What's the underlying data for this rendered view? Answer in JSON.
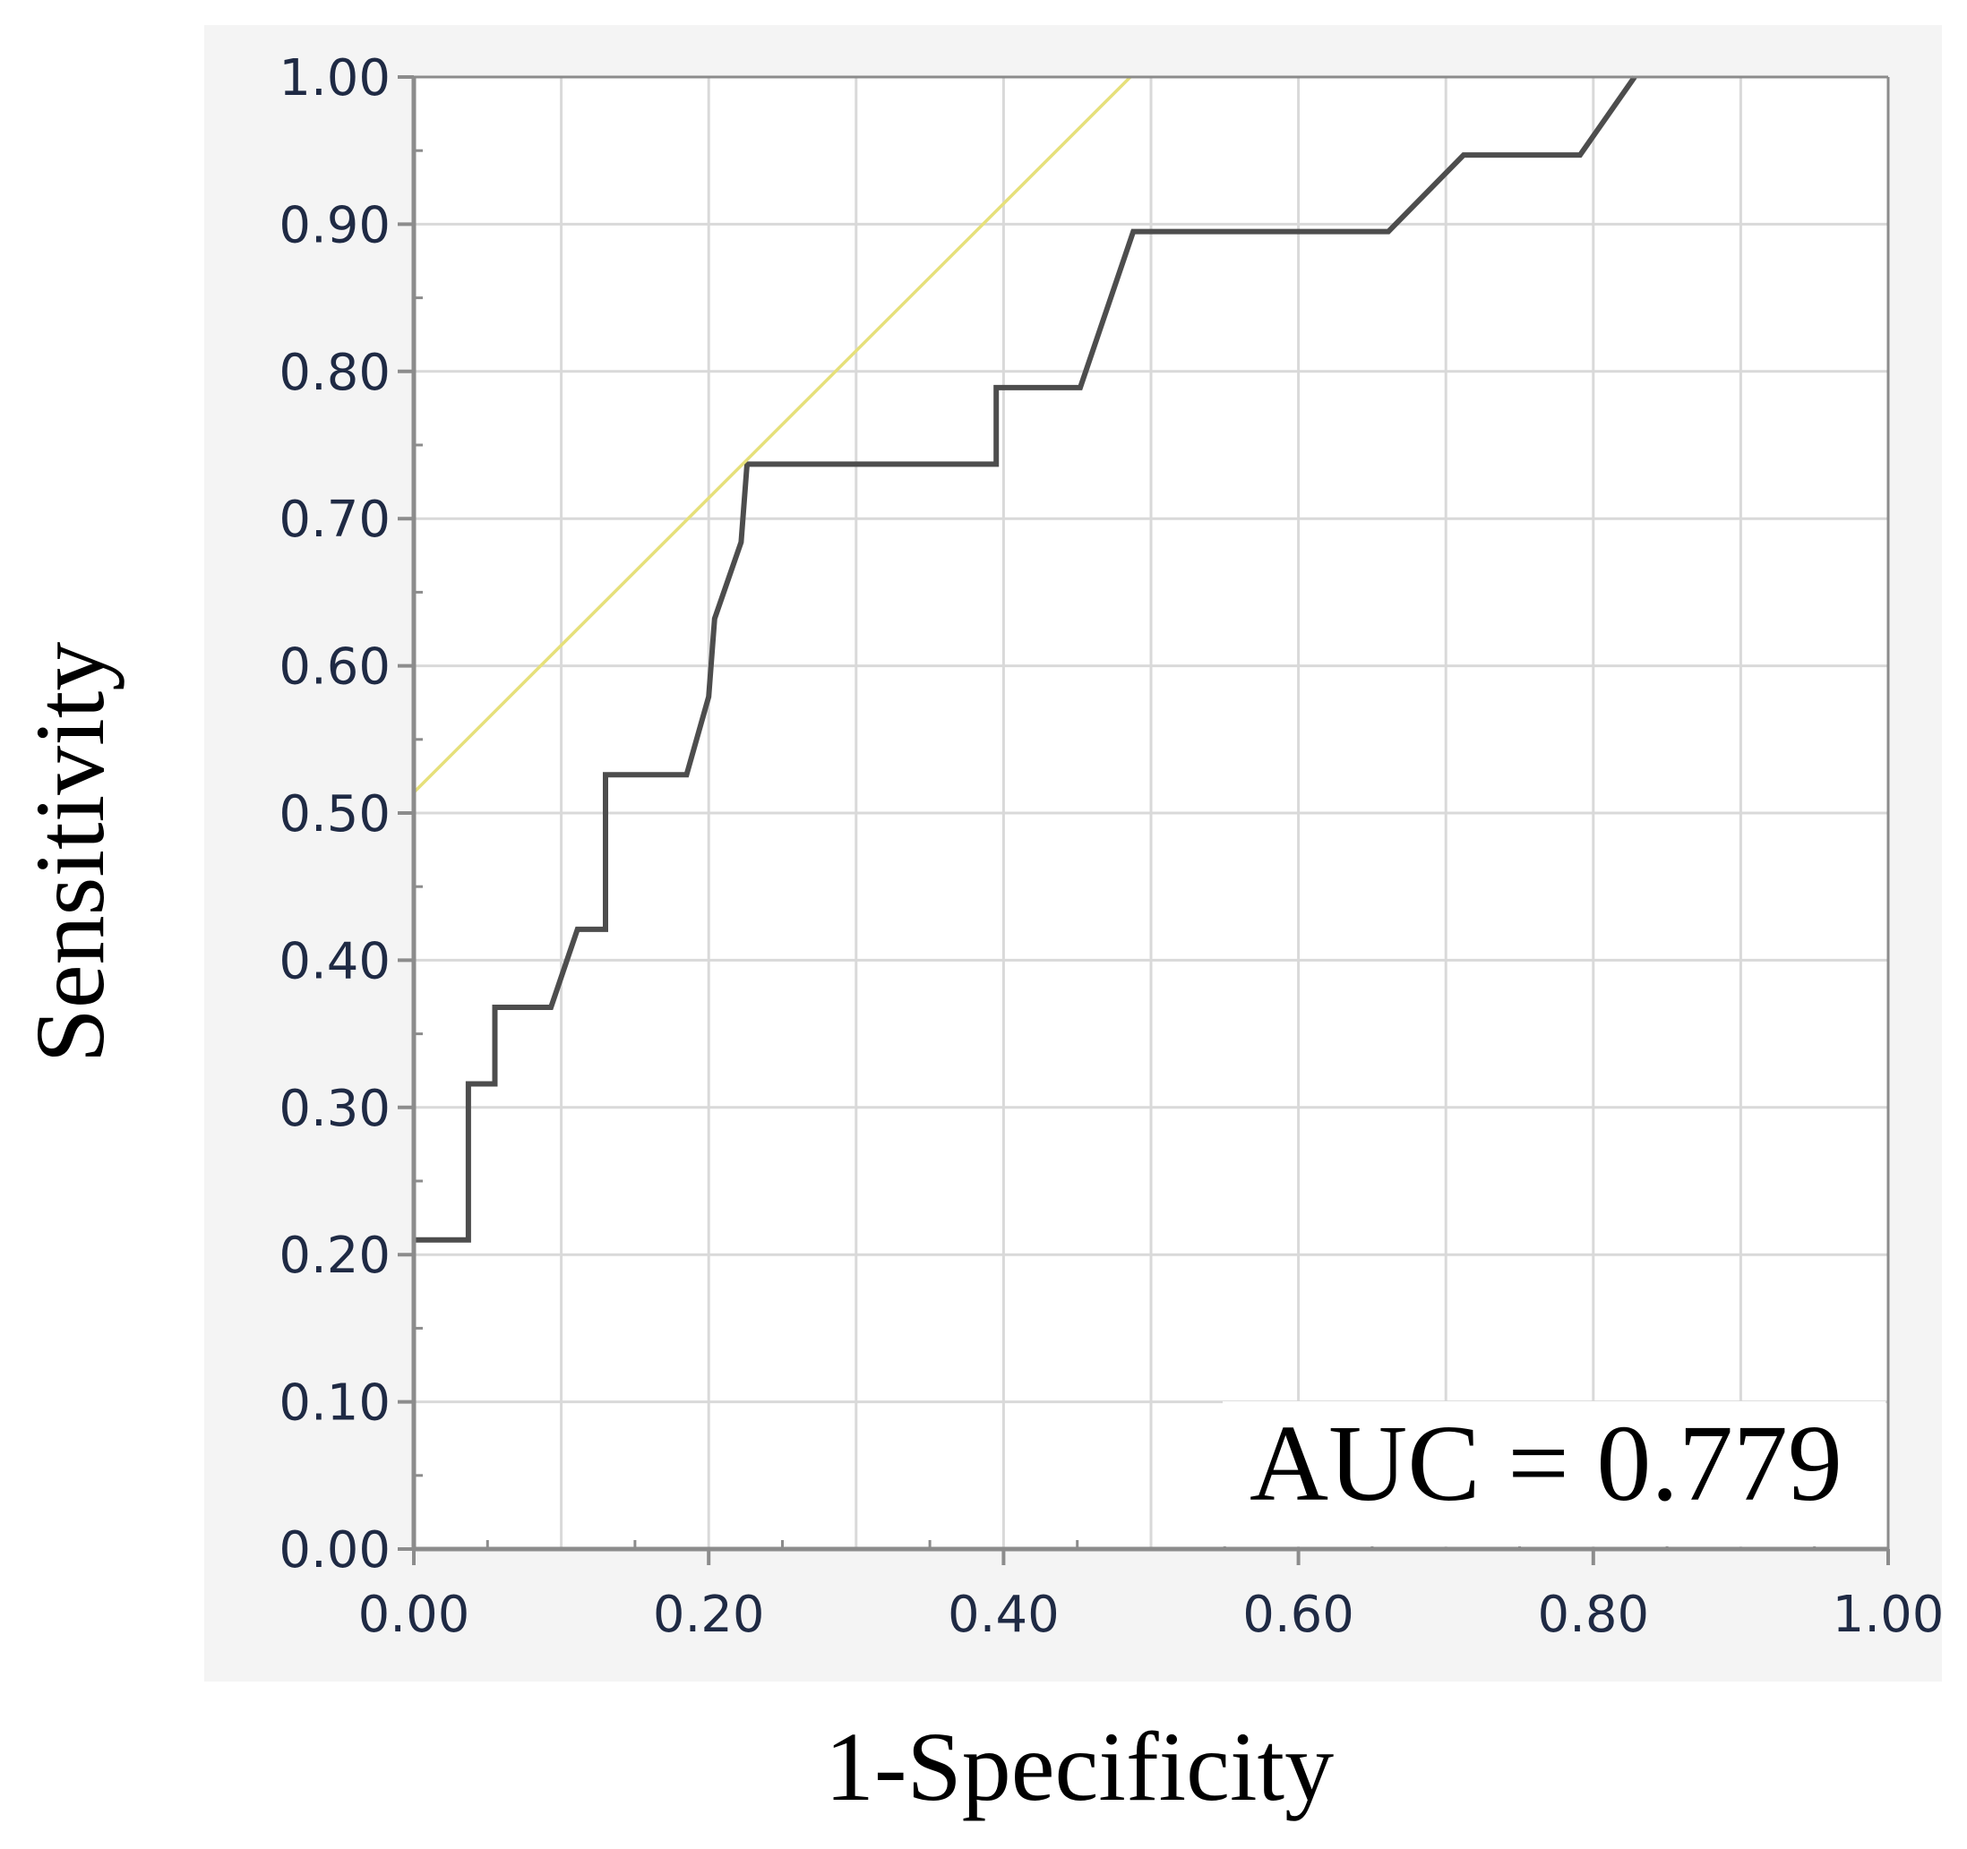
{
  "chart_data": {
    "type": "line",
    "xlabel": "1-Specificity",
    "ylabel": "Sensitivity",
    "xlim": [
      0,
      1
    ],
    "ylim": [
      0,
      1
    ],
    "x_ticks": [
      "0.00",
      "0.20",
      "0.40",
      "0.60",
      "0.80",
      "1.00"
    ],
    "y_ticks": [
      "0.00",
      "0.10",
      "0.20",
      "0.30",
      "0.40",
      "0.50",
      "0.60",
      "0.70",
      "0.80",
      "0.90",
      "1.00"
    ],
    "grid": true,
    "annotation": "AUC = 0.779",
    "series": [
      {
        "color": "#4d4d4d",
        "points": [
          [
            0.0,
            0.21
          ],
          [
            0.037,
            0.21
          ],
          [
            0.037,
            0.316
          ],
          [
            0.055,
            0.316
          ],
          [
            0.055,
            0.368
          ],
          [
            0.093,
            0.368
          ],
          [
            0.111,
            0.421
          ],
          [
            0.13,
            0.421
          ],
          [
            0.13,
            0.526
          ],
          [
            0.185,
            0.526
          ],
          [
            0.2,
            0.579
          ],
          [
            0.204,
            0.632
          ],
          [
            0.222,
            0.684
          ],
          [
            0.226,
            0.737
          ],
          [
            0.395,
            0.737
          ],
          [
            0.395,
            0.789
          ],
          [
            0.452,
            0.789
          ],
          [
            0.488,
            0.895
          ],
          [
            0.661,
            0.895
          ],
          [
            0.712,
            0.947
          ],
          [
            0.791,
            0.947
          ],
          [
            0.828,
            1.0
          ]
        ]
      },
      {
        "color": "#e6e07a",
        "points": [
          [
            0.0,
            0.514
          ],
          [
            0.486,
            1.0
          ]
        ]
      }
    ],
    "colors": {
      "grid": "#d9d9d9",
      "axis": "#8c8c8c",
      "tick_label": "#1f2a44",
      "panel_background": "#f4f4f4"
    }
  }
}
